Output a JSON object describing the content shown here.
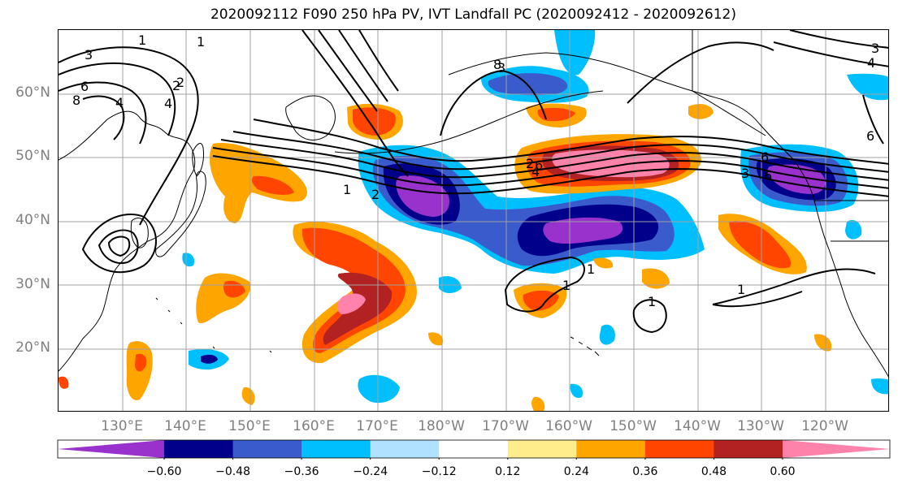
{
  "title": "2020092112 F090 250 hPa PV, IVT Landfall PC (2020092412 - 2020092612)",
  "lat_labels": [
    "60°N",
    "50°N",
    "40°N",
    "30°N",
    "20°N"
  ],
  "lon_labels": [
    "130°E",
    "140°E",
    "150°E",
    "160°E",
    "170°E",
    "180°W",
    "170°W",
    "160°W",
    "150°W",
    "140°W",
    "130°W",
    "120°W"
  ],
  "colorbar": {
    "colors": [
      "#9932CC",
      "#00008B",
      "#3A5BCC",
      "#00BFFF",
      "#B0E2FF",
      "#FFFFFF",
      "#FFEC8B",
      "#FFA500",
      "#FF4500",
      "#B22222",
      "#FF82AB"
    ],
    "tick_labels": [
      "−0.60",
      "−0.48",
      "−0.36",
      "−0.24",
      "−0.12",
      "0.12",
      "0.24",
      "0.36",
      "0.48",
      "0.60"
    ]
  },
  "contour_labels": [
    "1",
    "2",
    "3",
    "4",
    "6",
    "8",
    "1",
    "2",
    "3",
    "4",
    "6",
    "8",
    "1",
    "2",
    "1",
    "1",
    "1",
    "3",
    "4",
    "6",
    "1",
    "2",
    "4",
    "3",
    "6",
    "6"
  ],
  "colors": {
    "grid": "#a0a0a0",
    "coast": "#000000",
    "contour": "#000000",
    "tick_text": "#808080"
  }
}
